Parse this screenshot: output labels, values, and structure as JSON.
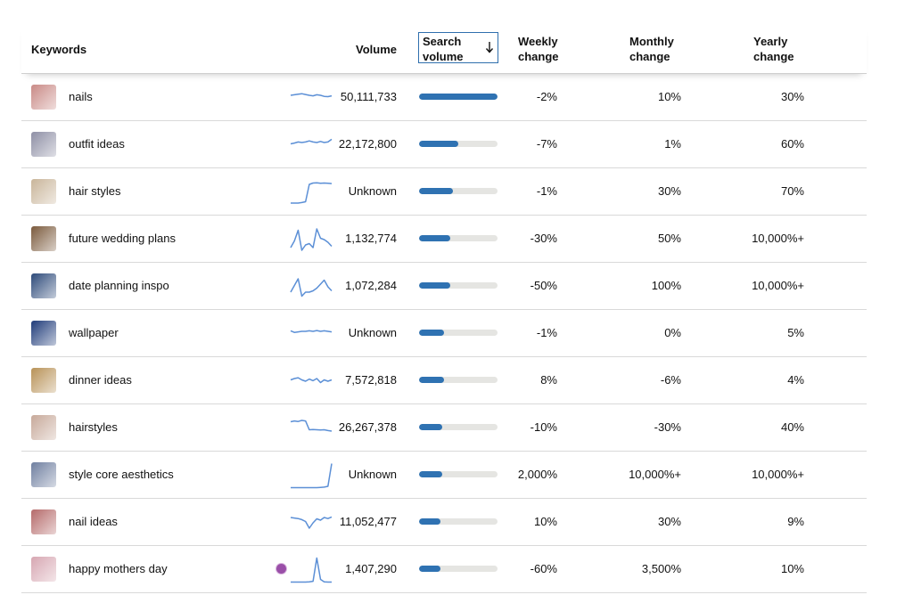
{
  "header": {
    "keywords": "Keywords",
    "volume": "Volume",
    "search_volume": "Search volume",
    "weekly_change": "Weekly change",
    "monthly_change": "Monthly change",
    "yearly_change": "Yearly change",
    "sort_icon": "arrow-down-icon"
  },
  "colors": {
    "accent": "#2f72b2",
    "track": "#e5e5e2",
    "sparkline": "#5b8fd6",
    "divider": "#d9d9d9"
  },
  "rows": [
    {
      "keyword": "nails",
      "volume": "50,111,733",
      "search_volume_fraction": 1.0,
      "weekly": "-2%",
      "monthly": "10%",
      "yearly": "30%",
      "thumb_color": "#c98a86",
      "trend": [
        0.6,
        0.62,
        0.64,
        0.66,
        0.63,
        0.6,
        0.58,
        0.62,
        0.6,
        0.56,
        0.55,
        0.58
      ]
    },
    {
      "keyword": "outfit ideas",
      "volume": "22,172,800",
      "search_volume_fraction": 0.5,
      "weekly": "-7%",
      "monthly": "1%",
      "yearly": "60%",
      "thumb_color": "#8e8fa5",
      "trend": [
        0.55,
        0.58,
        0.62,
        0.6,
        0.62,
        0.66,
        0.62,
        0.6,
        0.64,
        0.6,
        0.62,
        0.72
      ]
    },
    {
      "keyword": "hair styles",
      "volume": "Unknown",
      "search_volume_fraction": 0.43,
      "weekly": "-1%",
      "monthly": "30%",
      "yearly": "70%",
      "thumb_color": "#c9b59a",
      "trend": [
        0.1,
        0.1,
        0.1,
        0.12,
        0.15,
        0.8,
        0.85,
        0.86,
        0.84,
        0.85,
        0.84,
        0.83
      ]
    },
    {
      "keyword": "future wedding plans",
      "volume": "1,132,774",
      "search_volume_fraction": 0.4,
      "weekly": "-30%",
      "monthly": "50%",
      "yearly": "10,000%+",
      "thumb_color": "#7b5a3c",
      "trend": [
        0.2,
        0.45,
        0.85,
        0.1,
        0.3,
        0.35,
        0.2,
        0.9,
        0.55,
        0.5,
        0.4,
        0.25
      ]
    },
    {
      "keyword": "date planning inspo",
      "volume": "1,072,284",
      "search_volume_fraction": 0.4,
      "weekly": "-50%",
      "monthly": "100%",
      "yearly": "10,000%+",
      "thumb_color": "#2d4a7a",
      "trend": [
        0.3,
        0.55,
        0.8,
        0.15,
        0.3,
        0.3,
        0.35,
        0.45,
        0.6,
        0.75,
        0.5,
        0.35
      ]
    },
    {
      "keyword": "wallpaper",
      "volume": "Unknown",
      "search_volume_fraction": 0.32,
      "weekly": "-1%",
      "monthly": "0%",
      "yearly": "5%",
      "thumb_color": "#1f3b7a",
      "trend": [
        0.62,
        0.56,
        0.58,
        0.6,
        0.6,
        0.62,
        0.6,
        0.63,
        0.6,
        0.62,
        0.6,
        0.58
      ]
    },
    {
      "keyword": "dinner ideas",
      "volume": "7,572,818",
      "search_volume_fraction": 0.32,
      "weekly": "8%",
      "monthly": "-6%",
      "yearly": "4%",
      "thumb_color": "#b89257",
      "trend": [
        0.55,
        0.6,
        0.63,
        0.55,
        0.5,
        0.58,
        0.52,
        0.6,
        0.45,
        0.55,
        0.5,
        0.55
      ]
    },
    {
      "keyword": "hairstyles",
      "volume": "26,267,378",
      "search_volume_fraction": 0.3,
      "weekly": "-10%",
      "monthly": "-30%",
      "yearly": "40%",
      "thumb_color": "#c7a99a",
      "trend": [
        0.75,
        0.78,
        0.76,
        0.8,
        0.78,
        0.45,
        0.46,
        0.45,
        0.44,
        0.45,
        0.42,
        0.4
      ]
    },
    {
      "keyword": "style core aesthetics",
      "volume": "Unknown",
      "search_volume_fraction": 0.3,
      "weekly": "2,000%",
      "monthly": "10,000%+",
      "yearly": "10,000%+",
      "thumb_color": "#6f7fa0",
      "trend": [
        0.05,
        0.05,
        0.05,
        0.05,
        0.05,
        0.05,
        0.05,
        0.05,
        0.06,
        0.07,
        0.1,
        0.95
      ]
    },
    {
      "keyword": "nail ideas",
      "volume": "11,052,477",
      "search_volume_fraction": 0.27,
      "weekly": "10%",
      "monthly": "30%",
      "yearly": "9%",
      "thumb_color": "#b56a6a",
      "trend": [
        0.7,
        0.68,
        0.66,
        0.62,
        0.55,
        0.3,
        0.5,
        0.65,
        0.6,
        0.7,
        0.66,
        0.72
      ]
    },
    {
      "keyword": "happy mothers day",
      "volume": "1,407,290",
      "search_volume_fraction": 0.27,
      "weekly": "-60%",
      "monthly": "3,500%",
      "yearly": "10%",
      "thumb_color": "#d7a7b2",
      "trend": [
        0.05,
        0.05,
        0.05,
        0.05,
        0.05,
        0.06,
        0.08,
        0.95,
        0.15,
        0.06,
        0.05,
        0.05
      ]
    }
  ]
}
